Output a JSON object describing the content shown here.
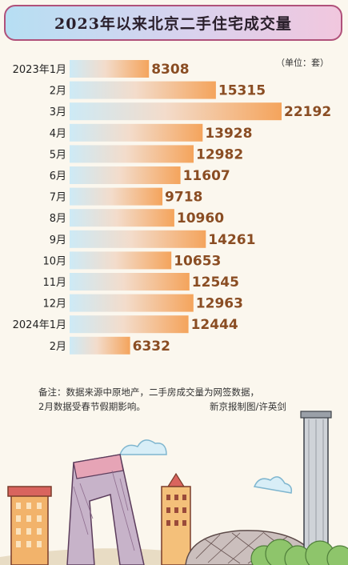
{
  "chart_data": {
    "type": "bar",
    "orientation": "horizontal",
    "title": "2023年以来北京二手住宅成交量",
    "unit_label": "（单位：套）",
    "categories": [
      "2023年1月",
      "2月",
      "3月",
      "4月",
      "5月",
      "6月",
      "7月",
      "8月",
      "9月",
      "10月",
      "11月",
      "12月",
      "2024年1月",
      "2月"
    ],
    "values": [
      8308,
      15315,
      22192,
      13928,
      12982,
      11607,
      9718,
      10960,
      14261,
      10653,
      12545,
      12963,
      12444,
      6332
    ],
    "xlim": [
      0,
      22192
    ],
    "grid": false,
    "legend": "none",
    "colors": {
      "bar_start": "#cdeaf6",
      "bar_end": "#f4a45c",
      "value_text": "#8a4d23"
    }
  },
  "notes": {
    "line1": "备注：数据来源中原地产，二手房成交量为网签数据，",
    "line2": "2月数据受春节假期影响。",
    "credit": "新京报制图/许英剑"
  },
  "colors": {
    "title_border": "#b0517a",
    "background": "#fbf7ee"
  }
}
